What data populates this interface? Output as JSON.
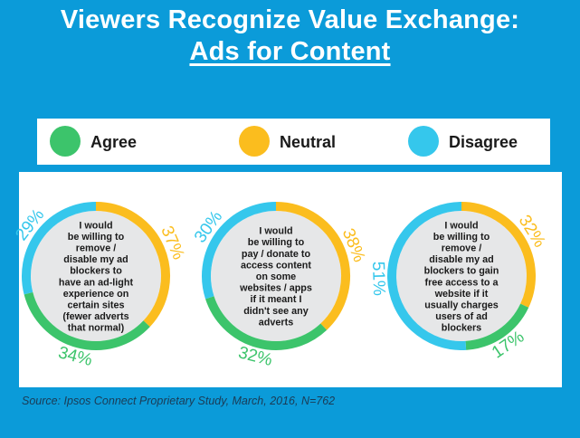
{
  "title": {
    "line1": "Viewers Recognize Value Exchange:",
    "line2": "Ads for Content"
  },
  "source": "Source: Ipsos Connect Proprietary Study, March, 2016, N=762",
  "colors": {
    "background": "#0b9bd9",
    "panel": "#ffffff",
    "donut_center": "#e6e7e8",
    "agree": "#3cc46b",
    "neutral": "#fbbd1e",
    "disagree": "#35c7ec",
    "text": "#1a1a1a"
  },
  "chart_data": {
    "type": "pie",
    "legend": [
      {
        "label": "Agree",
        "key": "agree"
      },
      {
        "label": "Neutral",
        "key": "neutral"
      },
      {
        "label": "Disagree",
        "key": "disagree"
      }
    ],
    "charts": [
      {
        "statement": [
          "I would",
          "be willing to",
          "remove /",
          "disable my ad",
          "blockers to",
          "have an ad-light",
          "experience on",
          "certain sites",
          "(fewer adverts",
          "that normal)"
        ],
        "slices": [
          {
            "key": "neutral",
            "value": 37,
            "label": "37%"
          },
          {
            "key": "agree",
            "value": 34,
            "label": "34%"
          },
          {
            "key": "disagree",
            "value": 29,
            "label": "29%"
          }
        ]
      },
      {
        "statement": [
          "I would",
          "be willing to",
          "pay / donate to",
          "access content",
          "on some",
          "websites / apps",
          "if it meant I",
          "didn't see any",
          "adverts"
        ],
        "slices": [
          {
            "key": "neutral",
            "value": 38,
            "label": "38%"
          },
          {
            "key": "agree",
            "value": 32,
            "label": "32%"
          },
          {
            "key": "disagree",
            "value": 30,
            "label": "30%"
          }
        ]
      },
      {
        "statement": [
          "I would",
          "be willing to",
          "remove /",
          "disable my ad",
          "blockers to gain",
          "free access to a",
          "website if it",
          "usually charges",
          "users of ad",
          "blockers"
        ],
        "slices": [
          {
            "key": "neutral",
            "value": 32,
            "label": "32%"
          },
          {
            "key": "agree",
            "value": 17,
            "label": "17%"
          },
          {
            "key": "disagree",
            "value": 51,
            "label": "51%"
          }
        ]
      }
    ]
  }
}
